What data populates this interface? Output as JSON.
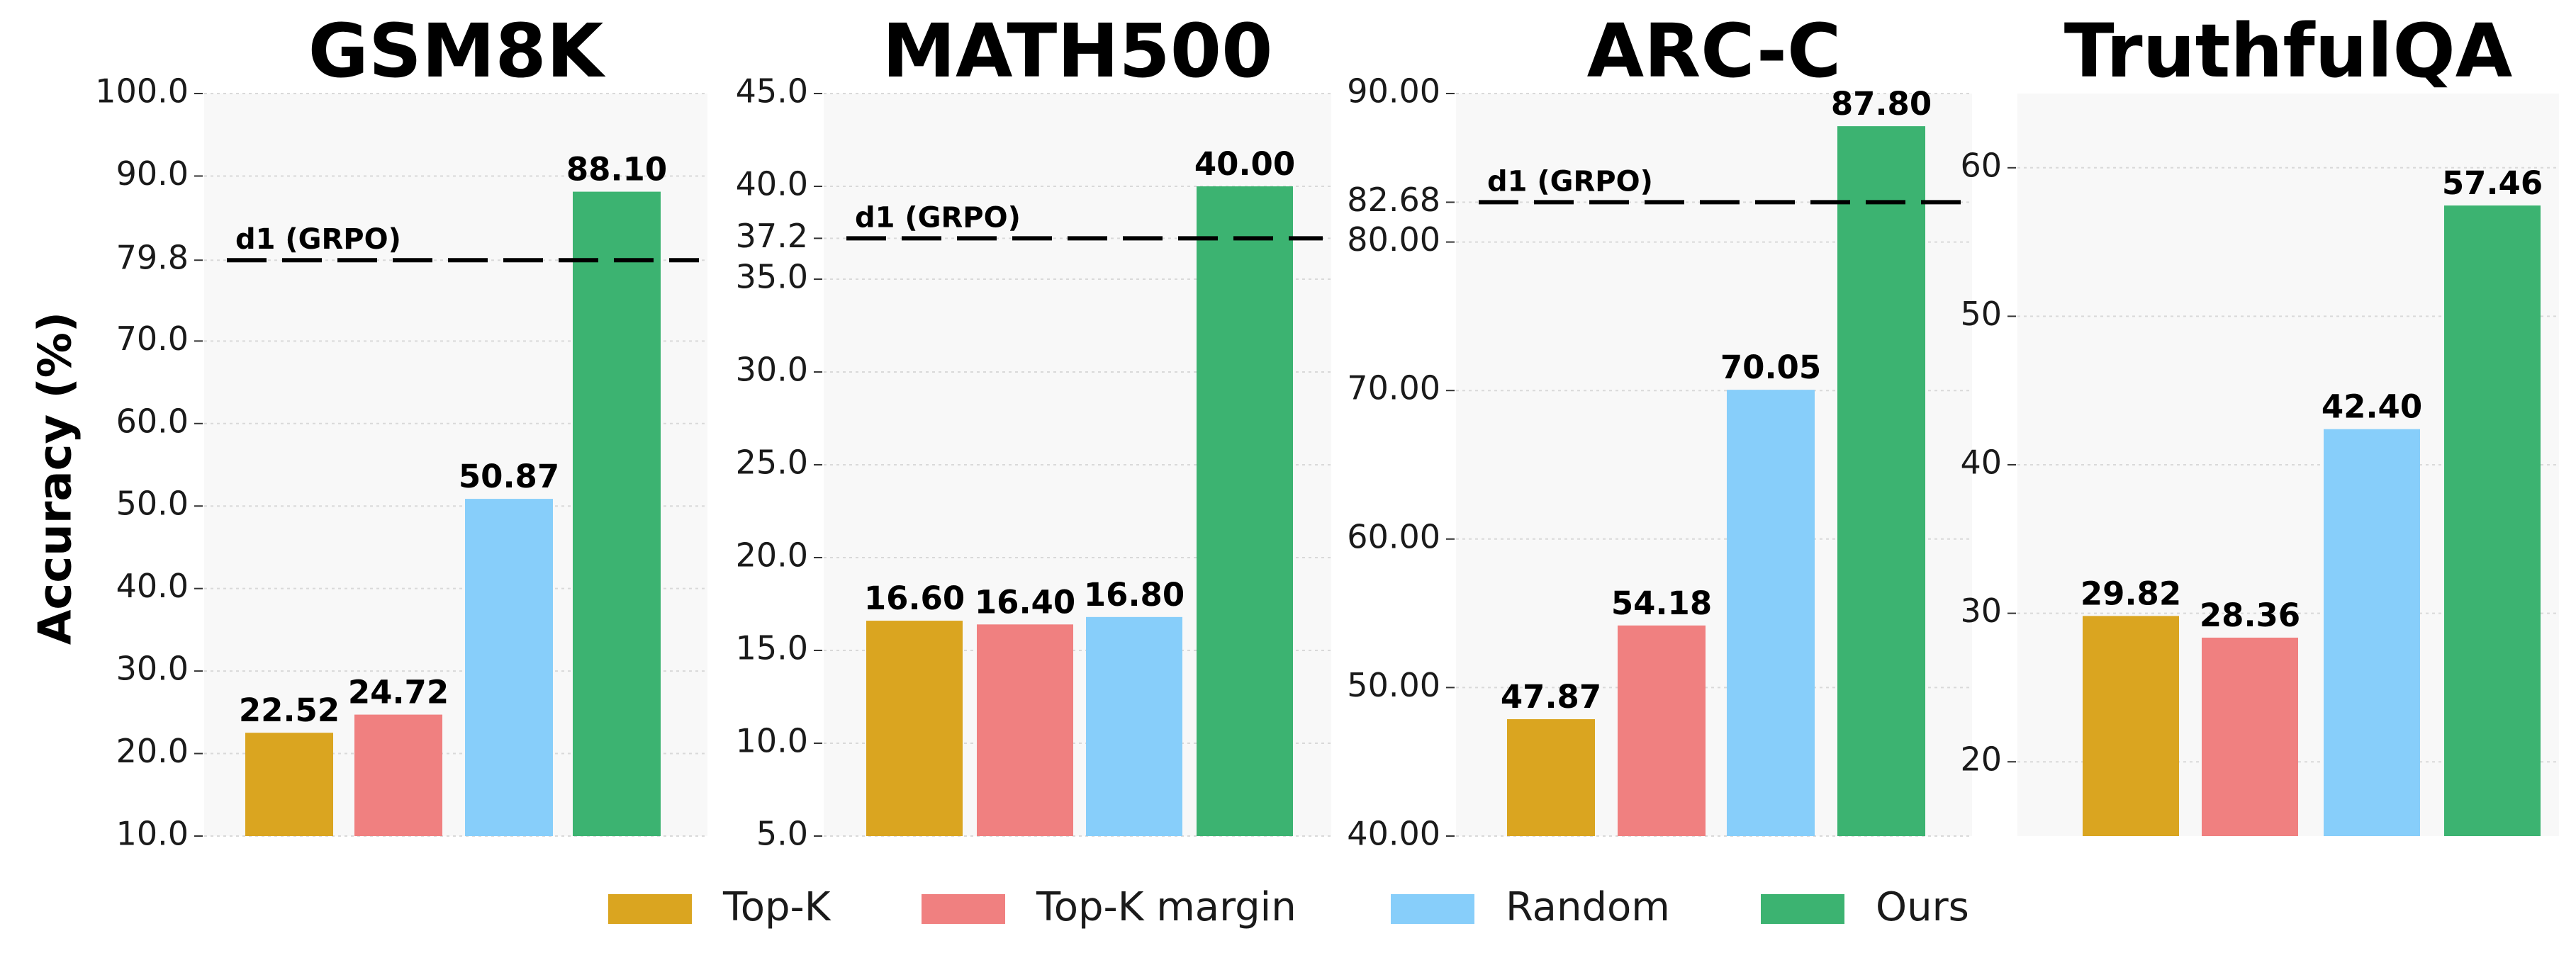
{
  "figure": {
    "ylabel": "Accuracy (%)"
  },
  "legend": [
    "Top-K",
    "Top-K margin",
    "Random",
    "Ours"
  ],
  "colors": {
    "Top-K": "#DAA520",
    "Top-K margin": "#F08080",
    "Random": "#87CEFA",
    "Ours": "#3CB371",
    "panel_bg": "#F8F8F8",
    "grid": "#D9D9D9",
    "reference_line": "#000000"
  },
  "chart_data": [
    {
      "type": "bar",
      "title": "GSM8K",
      "categories": [
        "Top-K",
        "Top-K margin",
        "Random",
        "Ours"
      ],
      "values": [
        22.52,
        24.72,
        50.87,
        88.1
      ],
      "value_labels": [
        "22.52",
        "24.72",
        "50.87",
        "88.10"
      ],
      "ylim": [
        10,
        100
      ],
      "yticks": [
        10,
        20,
        30,
        40,
        50,
        60,
        70,
        79.8,
        90,
        100
      ],
      "ytick_labels": [
        "10.0",
        "20.0",
        "30.0",
        "40.0",
        "50.0",
        "60.0",
        "70.0",
        "79.8",
        "90.0",
        "100.0"
      ],
      "reference": {
        "label": "d1 (GRPO)",
        "value": 79.8,
        "style": "dashed"
      },
      "grid": true
    },
    {
      "type": "bar",
      "title": "MATH500",
      "categories": [
        "Top-K",
        "Top-K margin",
        "Random",
        "Ours"
      ],
      "values": [
        16.6,
        16.4,
        16.8,
        40.0
      ],
      "value_labels": [
        "16.60",
        "16.40",
        "16.80",
        "40.00"
      ],
      "ylim": [
        5,
        45
      ],
      "yticks": [
        5,
        10,
        15,
        20,
        25,
        30,
        35,
        37.2,
        40,
        45
      ],
      "ytick_labels": [
        "5.0",
        "10.0",
        "15.0",
        "20.0",
        "25.0",
        "30.0",
        "35.0",
        "37.2",
        "40.0",
        "45.0"
      ],
      "reference": {
        "label": "d1 (GRPO)",
        "value": 37.2,
        "style": "dashed"
      },
      "grid": true
    },
    {
      "type": "bar",
      "title": "ARC-C",
      "categories": [
        "Top-K",
        "Top-K margin",
        "Random",
        "Ours"
      ],
      "values": [
        47.87,
        54.18,
        70.05,
        87.8
      ],
      "value_labels": [
        "47.87",
        "54.18",
        "70.05",
        "87.80"
      ],
      "ylim": [
        40,
        90
      ],
      "yticks": [
        40,
        50,
        60,
        70,
        80,
        82.68,
        90
      ],
      "ytick_labels": [
        "40.00",
        "50.00",
        "60.00",
        "70.00",
        "80.00",
        "82.68",
        "90.00"
      ],
      "reference": {
        "label": "d1 (GRPO)",
        "value": 82.68,
        "style": "dashed"
      },
      "grid": true
    },
    {
      "type": "bar",
      "title": "TruthfulQA",
      "categories": [
        "Top-K",
        "Top-K margin",
        "Random",
        "Ours"
      ],
      "values": [
        29.82,
        28.36,
        42.4,
        57.46
      ],
      "value_labels": [
        "29.82",
        "28.36",
        "42.40",
        "57.46"
      ],
      "ylim": [
        15,
        65
      ],
      "yticks": [
        20,
        30,
        40,
        50,
        60
      ],
      "ytick_labels": [
        "20",
        "30",
        "40",
        "50",
        "60"
      ],
      "grid": true
    }
  ]
}
